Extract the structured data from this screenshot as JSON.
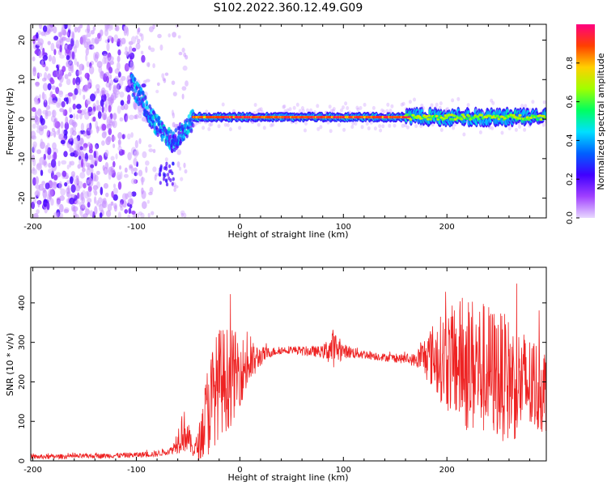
{
  "title": "S102.2022.360.12.49.G09",
  "chart_data": [
    {
      "type": "heatmap",
      "xlabel": "Height of straight line (km)",
      "ylabel": "Frequency (Hz)",
      "xlim": [
        -202,
        296
      ],
      "ylim": [
        -25,
        24
      ],
      "x_ticks": [
        -200,
        -100,
        0,
        100,
        200
      ],
      "y_ticks": [
        -20,
        -10,
        0,
        10,
        20
      ],
      "colorbar": {
        "label": "Normalized spectral amplitude",
        "range": [
          0,
          1
        ],
        "ticks": [
          "0.0",
          "0.2",
          "0.4",
          "0.6",
          "0.8"
        ],
        "colormap": [
          "#e8d8ff",
          "#a040ff",
          "#4000ff",
          "#0060ff",
          "#00e0ff",
          "#00ff60",
          "#a0ff00",
          "#ffd000",
          "#ff4000",
          "#ff0080"
        ]
      },
      "features": {
        "scatter_region_x": [
          -200,
          -100
        ],
        "descending_branch": [
          [
            -105,
            9
          ],
          [
            -95,
            5
          ],
          [
            -85,
            0
          ],
          [
            -75,
            -3
          ],
          [
            -65,
            -6
          ],
          [
            -55,
            -3
          ],
          [
            -45,
            0
          ]
        ],
        "carrier_line": {
          "x_start": -45,
          "x_end": 296,
          "frequency": 0.5,
          "peak_amplitude": 0.95
        }
      }
    },
    {
      "type": "line",
      "xlabel": "Height of straight line (km)",
      "ylabel": "SNR (10 * v/v)",
      "xlim": [
        -202,
        296
      ],
      "ylim": [
        0,
        490
      ],
      "x_ticks": [
        -200,
        -100,
        0,
        100,
        200
      ],
      "y_ticks": [
        0,
        100,
        200,
        300,
        400
      ],
      "color": "#ee2222",
      "envelope": {
        "x": [
          -202,
          -150,
          -100,
          -80,
          -65,
          -55,
          -50,
          -45,
          -40,
          -30,
          -20,
          -10,
          0,
          10,
          20,
          30,
          40,
          50,
          60,
          80,
          90,
          100,
          120,
          140,
          160,
          170,
          175,
          185,
          200,
          220,
          240,
          260,
          280,
          296
        ],
        "mean": [
          10,
          12,
          15,
          18,
          28,
          80,
          60,
          25,
          40,
          140,
          200,
          210,
          230,
          245,
          265,
          275,
          280,
          282,
          278,
          276,
          285,
          278,
          270,
          262,
          258,
          255,
          262,
          265,
          255,
          245,
          230,
          205,
          190,
          180
        ],
        "spread": [
          6,
          6,
          7,
          8,
          10,
          60,
          40,
          15,
          40,
          130,
          140,
          130,
          90,
          60,
          25,
          12,
          10,
          10,
          12,
          15,
          50,
          18,
          12,
          10,
          12,
          18,
          40,
          80,
          130,
          180,
          170,
          160,
          130,
          110
        ]
      }
    }
  ]
}
